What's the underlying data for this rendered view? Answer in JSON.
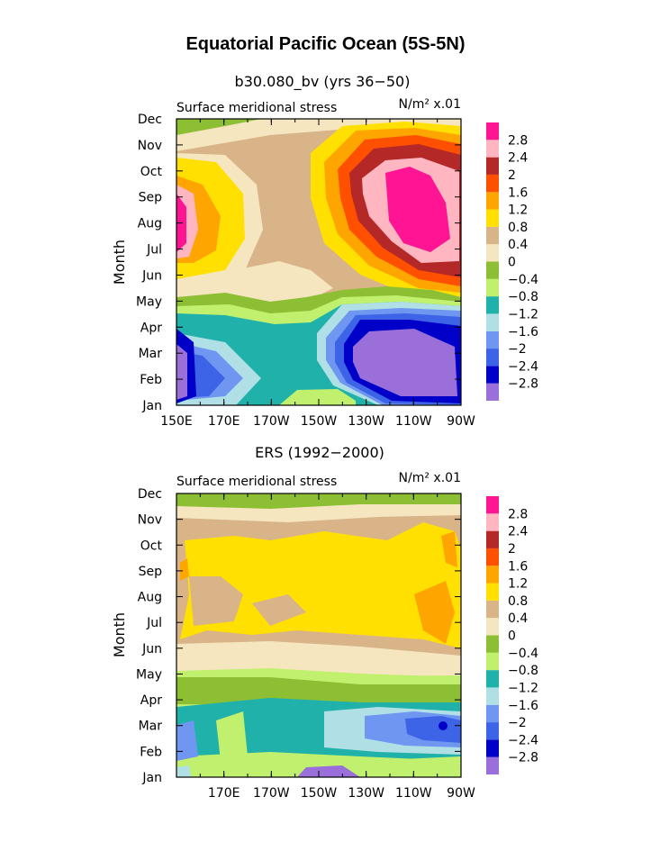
{
  "title": "Equatorial Pacific Ocean (5S-5N)",
  "colorbar": {
    "colors": [
      "#9a6fd9",
      "#0000c8",
      "#3d64e6",
      "#6f96f0",
      "#b0e0e6",
      "#20b2aa",
      "#c0f06e",
      "#8cbf34",
      "#f5e6c0",
      "#d8b488",
      "#ffe000",
      "#ffa500",
      "#ff5000",
      "#b42828",
      "#ffb6c1",
      "#ff1493"
    ],
    "labels": [
      "-2.8",
      "-2.4",
      "-2",
      "-1.6",
      "-1.2",
      "-0.8",
      "-0.4",
      "0",
      "0.4",
      "0.8",
      "1.2",
      "1.6",
      "2",
      "2.4",
      "2.8"
    ]
  },
  "chart_data": [
    {
      "type": "heatmap",
      "title": "b30.080_bv (yrs 36−50)",
      "left_label": "Surface meridional stress",
      "units": "N/m² x.01",
      "ylabel": "Month",
      "xlabel": "",
      "x_ticks": [
        "150E",
        "170E",
        "170W",
        "150W",
        "130W",
        "110W",
        "90W"
      ],
      "y_ticks": [
        "Jan",
        "Feb",
        "Mar",
        "Apr",
        "May",
        "Jun",
        "Jul",
        "Aug",
        "Sep",
        "Oct",
        "Nov",
        "Dec"
      ],
      "lon_range": [
        150,
        270
      ],
      "levels": [
        -2.8,
        -2.4,
        -2,
        -1.6,
        -1.2,
        -0.8,
        -0.4,
        0,
        0.4,
        0.8,
        1.2,
        1.6,
        2,
        2.4,
        2.8
      ],
      "approx_features": [
        {
          "month": "Aug",
          "lon": 155,
          "value": 2.8
        },
        {
          "month": "Aug",
          "lon": 252,
          "value": 3.0
        },
        {
          "month": "Feb",
          "lon": 158,
          "value": -2.6
        },
        {
          "month": "Feb",
          "lon": 250,
          "value": -2.9
        },
        {
          "month": "Jun",
          "lon": 210,
          "value": 0.3
        },
        {
          "month": "Apr",
          "lon": 180,
          "value": -0.9
        }
      ]
    },
    {
      "type": "heatmap",
      "title": "ERS (1992−2000)",
      "left_label": "Surface meridional stress",
      "units": "N/m² x.01",
      "ylabel": "Month",
      "xlabel": "",
      "x_ticks": [
        "170E",
        "170W",
        "150W",
        "130W",
        "110W",
        "90W"
      ],
      "y_ticks": [
        "Jan",
        "Feb",
        "Mar",
        "Apr",
        "May",
        "Jun",
        "Jul",
        "Aug",
        "Sep",
        "Oct",
        "Nov",
        "Dec"
      ],
      "lon_range": [
        150,
        270
      ],
      "levels": [
        -2.8,
        -2.4,
        -2,
        -1.6,
        -1.2,
        -0.8,
        -0.4,
        0,
        0.4,
        0.8,
        1.2,
        1.6,
        2,
        2.4,
        2.8
      ],
      "approx_features": [
        {
          "month": "Aug",
          "lon": 230,
          "value": 1.0
        },
        {
          "month": "Jul",
          "lon": 262,
          "value": 1.3
        },
        {
          "month": "Mar",
          "lon": 262,
          "value": -2.5
        },
        {
          "month": "Mar",
          "lon": 235,
          "value": -1.3
        },
        {
          "month": "Feb",
          "lon": 160,
          "value": -1.7
        },
        {
          "month": "Dec",
          "lon": 190,
          "value": -0.2
        }
      ]
    }
  ]
}
